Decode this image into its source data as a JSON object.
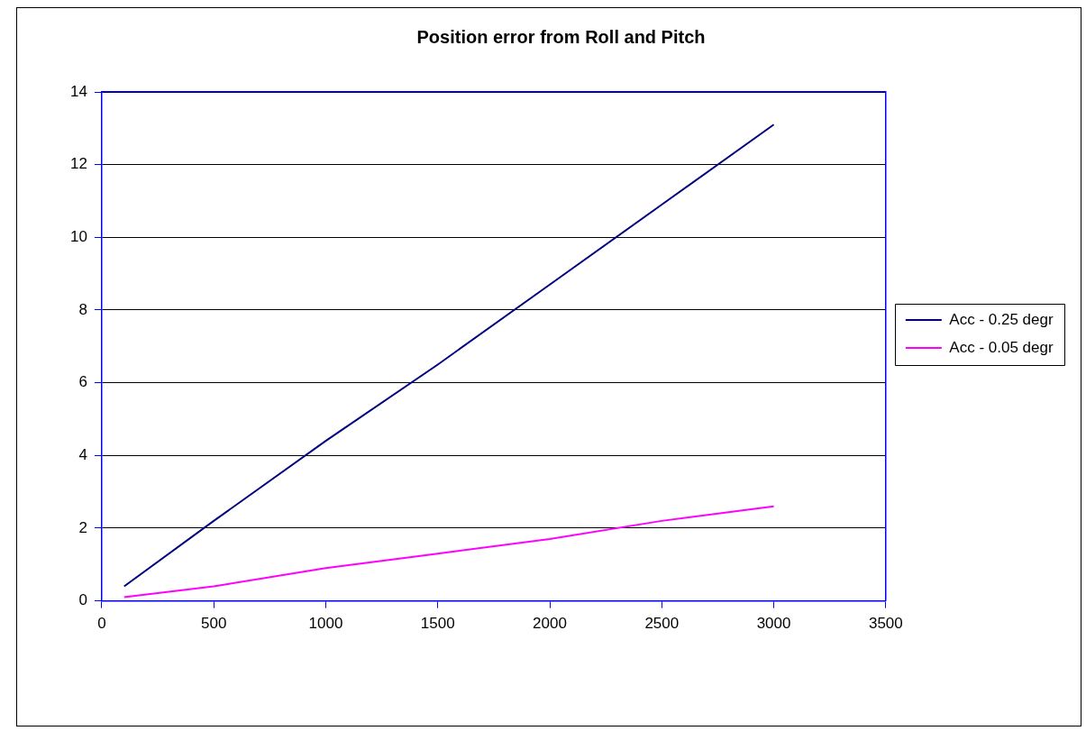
{
  "chart_data": {
    "type": "line",
    "title": "Position error from Roll and Pitch",
    "series": [
      {
        "name": "Acc - 0.25 degr",
        "color": "#000080",
        "x": [
          100,
          500,
          1000,
          1500,
          2000,
          2500,
          3000
        ],
        "values": [
          0.4,
          2.2,
          4.4,
          6.5,
          8.7,
          10.9,
          13.1
        ]
      },
      {
        "name": "Acc - 0.05 degr",
        "color": "#ff00ff",
        "x": [
          100,
          500,
          1000,
          1500,
          2000,
          2500,
          3000
        ],
        "values": [
          0.1,
          0.4,
          0.9,
          1.3,
          1.7,
          2.2,
          2.6
        ]
      }
    ],
    "xlim": [
      0,
      3500
    ],
    "xticks": [
      0,
      500,
      1000,
      1500,
      2000,
      2500,
      3000,
      3500
    ],
    "ylim": [
      0,
      14
    ],
    "yticks": [
      0,
      2,
      4,
      6,
      8,
      10,
      12,
      14
    ],
    "grid": "y",
    "legend": "right",
    "marker": "none",
    "line_style": "solid"
  }
}
